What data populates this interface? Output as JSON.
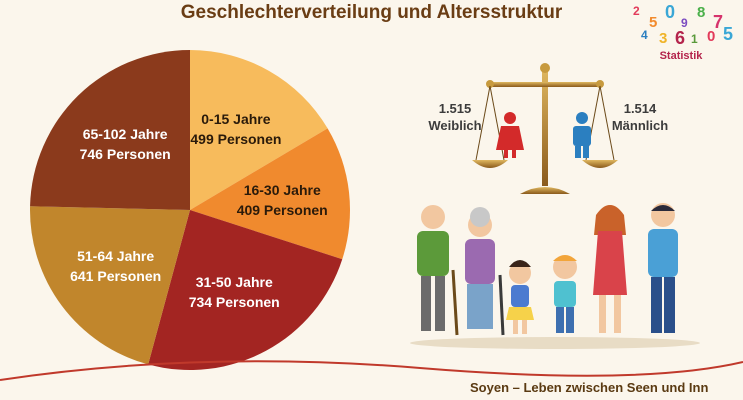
{
  "title": "Geschlechterverteilung und Altersstruktur",
  "logo": {
    "text": "Statistik",
    "digits": [
      "2",
      "5",
      "0",
      "9",
      "8",
      "7",
      "4",
      "3",
      "6",
      "1",
      "0",
      "5"
    ]
  },
  "gender": {
    "female": {
      "value": "1.515",
      "label": "Weiblich",
      "color": "#d32a2a"
    },
    "male": {
      "value": "1.514",
      "label": "Männlich",
      "color": "#2b7fc0"
    }
  },
  "footer": "Soyen – Leben zwischen Seen und Inn",
  "chart_data": {
    "type": "pie",
    "title": "",
    "slices": [
      {
        "label": "0-15 Jahre",
        "value_text": "499 Personen",
        "value": 499,
        "color": "#f7bb5c",
        "text_color": "#2a1a0a"
      },
      {
        "label": "16-30 Jahre",
        "value_text": "409 Personen",
        "value": 409,
        "color": "#f08a2e",
        "text_color": "#2a1a0a"
      },
      {
        "label": "31-50 Jahre",
        "value_text": "734 Personen",
        "value": 734,
        "color": "#a32522",
        "text_color": "#ffffff"
      },
      {
        "label": "51-64 Jahre",
        "value_text": "641 Personen",
        "value": 641,
        "color": "#c1862c",
        "text_color": "#ffffff"
      },
      {
        "label": "65-102 Jahre",
        "value_text": "746 Personen",
        "value": 746,
        "color": "#8b3a1c",
        "text_color": "#ffffff"
      }
    ]
  }
}
